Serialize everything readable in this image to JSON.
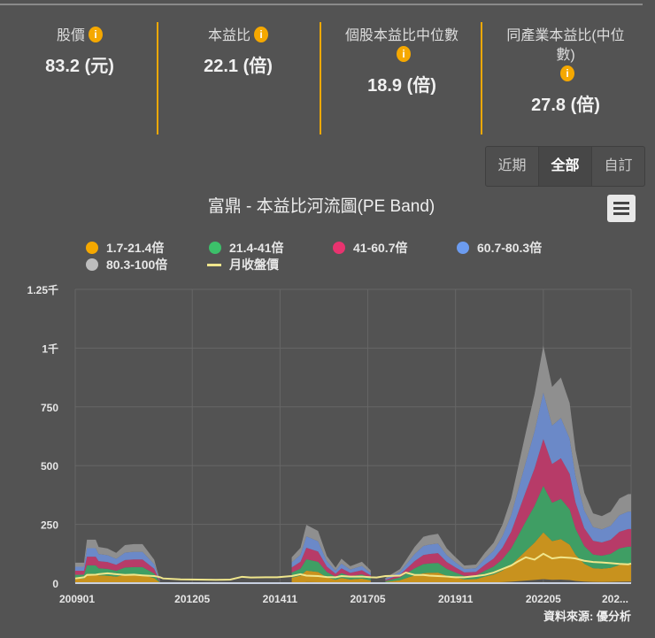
{
  "stats": [
    {
      "label": "股價",
      "value": "83.2 (元)"
    },
    {
      "label": "本益比",
      "value": "22.1 (倍)"
    },
    {
      "label": "個股本益比中位數",
      "value": "18.9 (倍)"
    },
    {
      "label": "同產業本益比(中位數)",
      "value": "27.8 (倍)"
    }
  ],
  "info_icon": "i",
  "range_buttons": [
    {
      "label": "近期",
      "active": false
    },
    {
      "label": "全部",
      "active": true
    },
    {
      "label": "自訂",
      "active": false
    }
  ],
  "menu_icon": "hamburger-menu-icon",
  "source": "資料來源: 優分析",
  "chart_data": {
    "type": "area",
    "title": "富鼎 - 本益比河流圖(PE Band)",
    "legend_position": "top",
    "grid": true,
    "ylim": [
      0,
      1250
    ],
    "y_ticks": [
      "0",
      "250",
      "500",
      "750",
      "1千",
      "1.25千"
    ],
    "y_tick_values": [
      0,
      250,
      500,
      750,
      1000,
      1250
    ],
    "x_ticks": [
      "200901",
      "201205",
      "201411",
      "201705",
      "201911",
      "202205",
      "202..."
    ],
    "x_tick_dates": [
      "200901",
      "201205",
      "201411",
      "201705",
      "201911",
      "202205",
      "202411"
    ],
    "bands": [
      {
        "name": "1.7-21.4倍",
        "range": [
          1.7,
          21.4
        ],
        "color": "#c8921e",
        "legend_color": "#f5a800"
      },
      {
        "name": "21.4-41倍",
        "range": [
          21.4,
          41
        ],
        "color": "#3f9e64",
        "legend_color": "#3cc06a"
      },
      {
        "name": "41-60.7倍",
        "range": [
          41,
          60.7
        ],
        "color": "#b73b68",
        "legend_color": "#e8336f"
      },
      {
        "name": "60.7-80.3倍",
        "range": [
          60.7,
          80.3
        ],
        "color": "#6b89c8",
        "legend_color": "#6c9cf0"
      },
      {
        "name": "80.3-100倍",
        "range": [
          80.3,
          100
        ],
        "color": "#8f8f8f",
        "legend_color": "#bdbdbd"
      }
    ],
    "price_series": {
      "name": "月收盤價",
      "color": "#f0e68c"
    },
    "points": [
      {
        "d": "200901",
        "top": 87,
        "price": 20
      },
      {
        "d": "200904",
        "top": 87,
        "price": 25
      },
      {
        "d": "200905",
        "top": 185,
        "price": 35
      },
      {
        "d": "200908",
        "top": 185,
        "price": 36
      },
      {
        "d": "200909",
        "top": 154,
        "price": 38
      },
      {
        "d": "200912",
        "top": 148,
        "price": 42
      },
      {
        "d": "201003",
        "top": 129,
        "price": 38
      },
      {
        "d": "201006",
        "top": 162,
        "price": 35
      },
      {
        "d": "201009",
        "top": 166,
        "price": 36
      },
      {
        "d": "201012",
        "top": 166,
        "price": 33
      },
      {
        "d": "201104",
        "top": 100,
        "price": 30
      },
      {
        "d": "201105",
        "top": 54,
        "price": 28
      },
      {
        "d": "201106",
        "top": 10,
        "price": 25
      },
      {
        "d": "201107",
        "top": null,
        "price": 20
      },
      {
        "d": "201201",
        "top": null,
        "price": 16
      },
      {
        "d": "201301",
        "top": null,
        "price": 14
      },
      {
        "d": "201306",
        "top": null,
        "price": 15
      },
      {
        "d": "201310",
        "top": null,
        "price": 27
      },
      {
        "d": "201401",
        "top": null,
        "price": 24
      },
      {
        "d": "201406",
        "top": null,
        "price": 25
      },
      {
        "d": "201410",
        "top": null,
        "price": 25
      },
      {
        "d": "201503",
        "top": 110,
        "price": 30
      },
      {
        "d": "201506",
        "top": 150,
        "price": 38
      },
      {
        "d": "201508",
        "top": 248,
        "price": 32
      },
      {
        "d": "201512",
        "top": 222,
        "price": 30
      },
      {
        "d": "201603",
        "top": 116,
        "price": 26
      },
      {
        "d": "201606",
        "top": 66,
        "price": 25
      },
      {
        "d": "201608",
        "top": 104,
        "price": 30
      },
      {
        "d": "201611",
        "top": 72,
        "price": 28
      },
      {
        "d": "201703",
        "top": 91,
        "price": 28
      },
      {
        "d": "201706",
        "top": 54,
        "price": 25
      },
      {
        "d": "201708",
        "top": null,
        "price": 24
      },
      {
        "d": "201711",
        "top": 22,
        "price": 30
      },
      {
        "d": "201804",
        "top": 60,
        "price": 32
      },
      {
        "d": "201806",
        "top": 97,
        "price": 45
      },
      {
        "d": "201809",
        "top": 154,
        "price": 35
      },
      {
        "d": "201812",
        "top": 197,
        "price": 35
      },
      {
        "d": "201902",
        "top": 204,
        "price": 32
      },
      {
        "d": "201905",
        "top": 210,
        "price": 30
      },
      {
        "d": "201908",
        "top": 148,
        "price": 28
      },
      {
        "d": "201911",
        "top": 110,
        "price": 25
      },
      {
        "d": "202002",
        "top": 75,
        "price": 25
      },
      {
        "d": "202006",
        "top": 79,
        "price": 30
      },
      {
        "d": "202009",
        "top": 129,
        "price": 35
      },
      {
        "d": "202012",
        "top": 172,
        "price": 45
      },
      {
        "d": "202103",
        "top": 248,
        "price": 60
      },
      {
        "d": "202106",
        "top": 360,
        "price": 75
      },
      {
        "d": "202108",
        "top": 472,
        "price": 90
      },
      {
        "d": "202111",
        "top": 641,
        "price": 110
      },
      {
        "d": "202202",
        "top": 804,
        "price": 100
      },
      {
        "d": "202205",
        "top": 1010,
        "price": 125
      },
      {
        "d": "202208",
        "top": 835,
        "price": 105
      },
      {
        "d": "202211",
        "top": 875,
        "price": 110
      },
      {
        "d": "202302",
        "top": 766,
        "price": 108
      },
      {
        "d": "202304",
        "top": 566,
        "price": 105
      },
      {
        "d": "202307",
        "top": 385,
        "price": 95
      },
      {
        "d": "202310",
        "top": 297,
        "price": 90
      },
      {
        "d": "202401",
        "top": 285,
        "price": 88
      },
      {
        "d": "202404",
        "top": 304,
        "price": 85
      },
      {
        "d": "202407",
        "top": 360,
        "price": 82
      },
      {
        "d": "202410",
        "top": 379,
        "price": 80
      },
      {
        "d": "202411",
        "top": 379,
        "price": 83
      }
    ]
  }
}
